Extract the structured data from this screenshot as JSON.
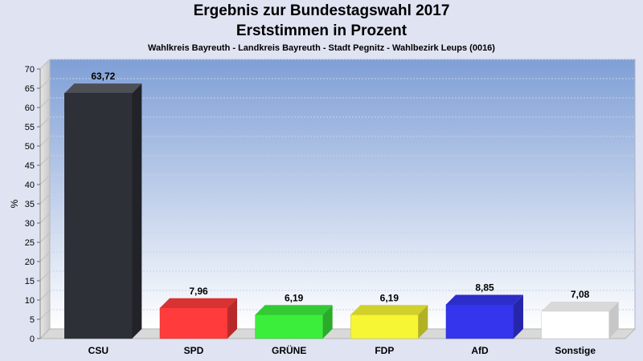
{
  "chart_data": {
    "type": "bar",
    "title": "Ergebnis zur Bundestagswahl 2017",
    "subtitle": "Erststimmen in Prozent",
    "caption": "Wahlkreis Bayreuth - Landkreis Bayreuth - Stadt Pegnitz - Wahlbezirk Leups (0016)",
    "ylabel": "%",
    "xlabel": "",
    "ylim": [
      0,
      70
    ],
    "yticks": [
      0,
      5,
      10,
      15,
      20,
      25,
      30,
      35,
      40,
      45,
      50,
      55,
      60,
      65,
      70
    ],
    "grid": true,
    "categories": [
      "CSU",
      "SPD",
      "GRÜNE",
      "FDP",
      "AfD",
      "Sonstige"
    ],
    "values": [
      63.72,
      7.96,
      6.19,
      6.19,
      8.85,
      7.08
    ],
    "value_labels": [
      "63,72",
      "7,96",
      "6,19",
      "6,19",
      "8,85",
      "7,08"
    ],
    "colors": [
      "#2e3038",
      "#ff3b3b",
      "#3cee3c",
      "#f6f634",
      "#3535ee",
      "#ffffff"
    ]
  }
}
